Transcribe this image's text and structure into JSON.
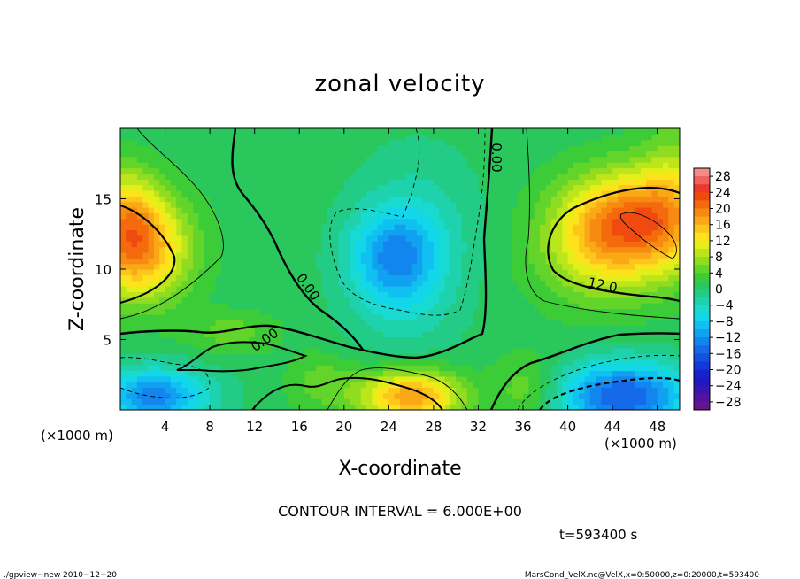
{
  "chart_data": {
    "type": "heatmap",
    "title": "zonal velocity",
    "xlabel": "X-coordinate",
    "ylabel": "Z-coordinate",
    "x_unit_label": "(×1000 m)",
    "z_unit_label": "(×1000 m)",
    "xlim": [
      0,
      50
    ],
    "ylim": [
      0,
      20
    ],
    "x_ticks": [
      "4",
      "8",
      "12",
      "16",
      "20",
      "24",
      "28",
      "32",
      "36",
      "40",
      "44",
      "48"
    ],
    "x_tick_values": [
      4,
      8,
      12,
      16,
      20,
      24,
      28,
      32,
      36,
      40,
      44,
      48
    ],
    "y_ticks": [
      "5",
      "10",
      "15"
    ],
    "y_tick_values": [
      5,
      10,
      15
    ],
    "colorbar": {
      "labels": [
        "28",
        "24",
        "20",
        "16",
        "12",
        "8",
        "4",
        "0",
        "−4",
        "−8",
        "−12",
        "−16",
        "−20",
        "−24",
        "−28"
      ],
      "values": [
        28,
        24,
        20,
        16,
        12,
        8,
        4,
        0,
        -4,
        -8,
        -12,
        -16,
        -20,
        -24,
        -28
      ],
      "levels": [
        {
          "min": 28,
          "max": 30,
          "color": "#f58a8a"
        },
        {
          "min": 26,
          "max": 28,
          "color": "#f06060"
        },
        {
          "min": 24,
          "max": 26,
          "color": "#ea3a2a"
        },
        {
          "min": 22,
          "max": 24,
          "color": "#f04a10"
        },
        {
          "min": 20,
          "max": 22,
          "color": "#f46a0c"
        },
        {
          "min": 18,
          "max": 20,
          "color": "#f78a10"
        },
        {
          "min": 16,
          "max": 18,
          "color": "#faa816"
        },
        {
          "min": 14,
          "max": 16,
          "color": "#fcc61a"
        },
        {
          "min": 12,
          "max": 14,
          "color": "#fde21c"
        },
        {
          "min": 10,
          "max": 12,
          "color": "#e4ef1a"
        },
        {
          "min": 8,
          "max": 10,
          "color": "#bce61c"
        },
        {
          "min": 6,
          "max": 8,
          "color": "#90dc20"
        },
        {
          "min": 4,
          "max": 6,
          "color": "#62d42a"
        },
        {
          "min": 2,
          "max": 4,
          "color": "#3ccc38"
        },
        {
          "min": 0,
          "max": 2,
          "color": "#2ac85c"
        },
        {
          "min": -2,
          "max": 0,
          "color": "#22cc86"
        },
        {
          "min": -4,
          "max": -2,
          "color": "#1ed2ae"
        },
        {
          "min": -6,
          "max": -4,
          "color": "#18dad0"
        },
        {
          "min": -8,
          "max": -6,
          "color": "#12d6ea"
        },
        {
          "min": -10,
          "max": -8,
          "color": "#10c0f0"
        },
        {
          "min": -12,
          "max": -10,
          "color": "#10a2f0"
        },
        {
          "min": -14,
          "max": -12,
          "color": "#1286ee"
        },
        {
          "min": -16,
          "max": -14,
          "color": "#146ae8"
        },
        {
          "min": -18,
          "max": -16,
          "color": "#1450e0"
        },
        {
          "min": -20,
          "max": -18,
          "color": "#1438d8"
        },
        {
          "min": -22,
          "max": -20,
          "color": "#1424cc"
        },
        {
          "min": -24,
          "max": -22,
          "color": "#2018c0"
        },
        {
          "min": -26,
          "max": -24,
          "color": "#3a14b0"
        },
        {
          "min": -28,
          "max": -26,
          "color": "#5014a0"
        },
        {
          "min": -30,
          "max": -28,
          "color": "#64148e"
        }
      ]
    },
    "field": {
      "background": 1,
      "blobs": [
        {
          "x": 1.5,
          "z": 11.5,
          "rx": 4.5,
          "rz": 3.6,
          "v": 18
        },
        {
          "x": 0.5,
          "z": 14.5,
          "rx": 3.0,
          "rz": 3.0,
          "v": 8
        },
        {
          "x": 45.5,
          "z": 13.5,
          "rx": 6.0,
          "rz": 3.5,
          "v": 19
        },
        {
          "x": 49.5,
          "z": 15.5,
          "rx": 3.0,
          "rz": 5.0,
          "v": 6
        },
        {
          "x": 43.0,
          "z": 10.5,
          "rx": 6.0,
          "rz": 3.5,
          "v": 6
        },
        {
          "x": 24.5,
          "z": 11.0,
          "rx": 4.0,
          "rz": 3.2,
          "v": -11
        },
        {
          "x": 26.5,
          "z": 13.0,
          "rx": 5.5,
          "rz": 5.5,
          "v": -4
        },
        {
          "x": 25.0,
          "z": 7.0,
          "rx": 5.0,
          "rz": 3.5,
          "v": -3
        },
        {
          "x": 26.0,
          "z": 1.0,
          "rx": 4.5,
          "rz": 1.8,
          "v": 17
        },
        {
          "x": 18.0,
          "z": 2.0,
          "rx": 3.0,
          "rz": 2.0,
          "v": 4
        },
        {
          "x": 3.0,
          "z": 1.0,
          "rx": 5.0,
          "rz": 2.0,
          "v": -14
        },
        {
          "x": 45.0,
          "z": 1.0,
          "rx": 6.0,
          "rz": 2.5,
          "v": -17
        },
        {
          "x": 36.5,
          "z": 1.5,
          "rx": 3.0,
          "rz": 2.5,
          "v": 5
        },
        {
          "x": 10.0,
          "z": 5.5,
          "rx": 4.0,
          "rz": 1.5,
          "v": 4
        }
      ]
    },
    "contour_labels": [
      "0.00",
      "0.00",
      "0.00",
      "12.0"
    ],
    "contour_interval_text": "CONTOUR INTERVAL = 6.000E+00",
    "time_text": "t=593400 s",
    "footer_left": "./gpview−new  2010−12−20",
    "footer_right": "MarsCond_VelX.nc@VelX,x=0:50000,z=0:20000,t=593400"
  }
}
